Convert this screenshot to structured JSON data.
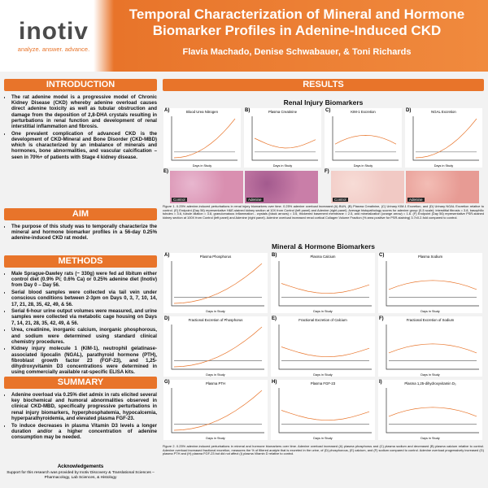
{
  "header": {
    "logo_name": "inotiv",
    "tagline": "analyze. answer. advance.",
    "title": "Temporal Characterization of Mineral and Hormone Biomarker Profiles in Adenine-Induced CKD",
    "authors": "Flavia Machado, Denise Schwabauer, & Toni Richards"
  },
  "introduction": {
    "heading": "INTRODUCTION",
    "bullets": [
      "The rat adenine model is a progressive model of Chronic Kidney Disease (CKD) whereby adenine overload causes direct adenine toxicity as well as tubular obstruction and damage from the deposition of 2,8-DHA crystals resulting in perturbations in renal function and development of renal interstitial inflammation and fibrosis.",
      "One prevalent complication of advanced CKD is the development of CKD-Mineral and Bone Disorder (CKD-MBD) which is characterized by an imbalance of minerals and hormones, bone abnormalities, and vascular calcification – seen in 70%+ of patients with Stage 4 kidney disease."
    ]
  },
  "aim": {
    "heading": "AIM",
    "bullets": [
      "The purpose of this study was to temporally characterize the mineral and hormone biomarker profiles in a 56-day 0.25% adenine-induced CKD rat model."
    ]
  },
  "methods": {
    "heading": "METHODS",
    "bullets": [
      "Male Sprague-Dawley rats (~ 330g) were fed ad libitum either control diet (0.9% Pi; 0.6% Ca) or 0.25% adenine diet (Inotiv) from Day 0 – Day 56.",
      "Serial blood samples were collected via tail vein under conscious conditions between 2-3pm on Days 0, 3, 7, 10, 14, 17, 21, 28, 35, 42, 49, & 56.",
      "Serial 6-hour urine output volumes were measured, and urine samples were collected via metabolic cage housing on Days 7, 14, 21, 28, 35, 42, 49, & 56.",
      "Urea, creatinine, inorganic calcium, inorganic phosphorous, and sodium were determined using standard clinical chemistry procedures.",
      "Kidney injury molecule 1 (KIM-1), neutrophil gelatinase-associated lipocalin (NGAL), parathyroid hormone (PTH), fibroblast growth factor 23 (FGF-23), and 1,25-dihydroxyvitamin D3 concentrations were determined in using commercially available rat-specific ELISA kits."
    ]
  },
  "summary": {
    "heading": "SUMMARY",
    "bullets": [
      "Adenine overload via 0.25% diet admix in rats elicited several key biochemical and humoral abnormalities observed in clinical CKD-MBD, specifically progressive perturbations in renal injury biomarkers, hyperphosphatemia, hypocalcemia, hyperparathyroidemia, and elevated plasma FGF-23.",
      "To induce decreases in plasma Vitamin D3 levels a longer duration and/or a higher concentration of adenine consumption may be needed."
    ]
  },
  "acknowledgements": {
    "heading": "Acknowledgements",
    "text": "Support for this research was provided by Inotiv Discovery & Translational Sciences – Pharmacology, Lab Sciences, & Histology"
  },
  "results": {
    "heading": "RESULTS",
    "x_label": "Days in Study",
    "renal": {
      "heading": "Renal Injury Biomarkers",
      "panels": [
        {
          "letter": "A)",
          "title": "Blood Urea Nitrogen"
        },
        {
          "letter": "B)",
          "title": "Plasma Creatinine"
        },
        {
          "letter": "C)",
          "title": "KIM-1 Excretion"
        },
        {
          "letter": "D)",
          "title": "NGAL Excretion"
        }
      ],
      "images": [
        {
          "letter": "E)",
          "labels": [
            "Control",
            "Adenine"
          ]
        },
        {
          "letter": "F)",
          "labels": [
            "Control",
            "Adenine"
          ]
        }
      ],
      "caption": "Figure 1. 0.25% adenine-induced perturbations in renal injury biomarkers over time. 0.25% adenine overload increased (A) BUN, (B) Plasma Creatinine, (C) Urinary KIM-1 Excretion, and (D) Urinary NGAL Excretion relative to control. (E) Endpoint (Day 56) representative H&E-stained kidney section at 10X from Control (left panel) and Adenine (right panel). Average histopathology scores for adenine group (0-5 scale): interstitial fibrosis = 3.8, basophilic tubules = 3.6, tubule dilation = 3.8, granulomatous inflammation - crystals (black arrows) = 3.6, thickened basement membrane = 2.5, and mineralization (orange arrow) = 1.6. (F) Endpoint (Day 56) representative PSR-stained kidney section at 100X from Control (left panel) and Adenine (right panel). Adenine overload increased renal cortical Collagen Volume Fraction (% area positive for PSR-staining) 3.7±0.2-fold compared to control."
    },
    "mineral": {
      "heading": "Mineral & Hormone Biomarkers",
      "panels": [
        {
          "letter": "A)",
          "title": "Plasma Phosphorus"
        },
        {
          "letter": "B)",
          "title": "Plasma Calcium"
        },
        {
          "letter": "C)",
          "title": "Plasma Sodium"
        },
        {
          "letter": "D)",
          "title": "Fractional Excretion of Phosphorus"
        },
        {
          "letter": "E)",
          "title": "Fractional Excretion of Calcium"
        },
        {
          "letter": "F)",
          "title": "Fractional Excretion of Sodium"
        },
        {
          "letter": "G)",
          "title": "Plasma PTH"
        },
        {
          "letter": "H)",
          "title": "Plasma FGF-23"
        },
        {
          "letter": "I)",
          "title": "Plasma 1,25-dihydroxyvitamin D₃"
        }
      ],
      "caption": "Figure 2. 0.25% adenine-induced perturbations in mineral and hormone biomarkers over time. Adenine overload increased (A) plasma phosphorus and (C) plasma sodium and decreased (B) plasma calcium relative to control. Adenine overload increased fractional excretion, measures the % of filtered analyte that is excreted in the urine, of (D) phosphorous, (E) calcium, and (F) sodium compared to control. Adenine overload progressively increased (G) plasma PTH and (H) plasma FGF-23 but did not affect (I) plasma Vitamin D relative to control."
    }
  }
}
